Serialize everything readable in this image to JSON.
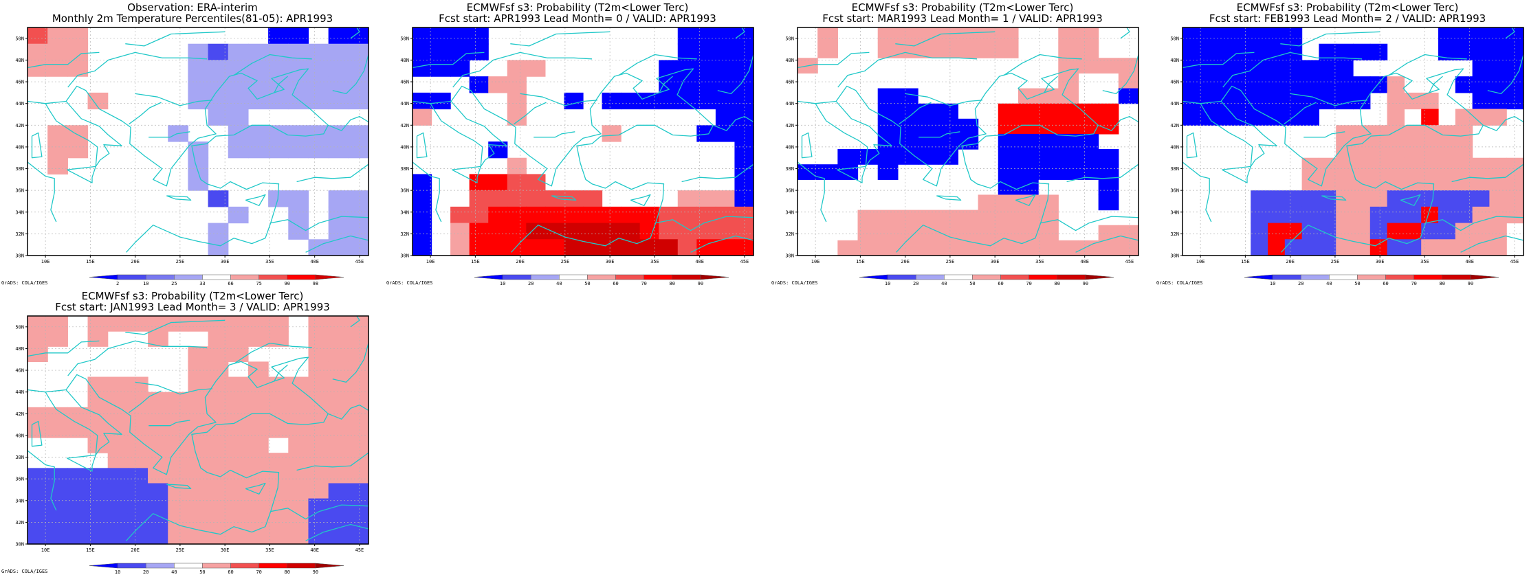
{
  "colors": {
    "blue_strong": "#0000ff",
    "blue_mid": "#4a4af0",
    "blue_light": "#a6a6f4",
    "red_light": "#f6a2a2",
    "red_mid": "#f25050",
    "red_strong": "#ff0000",
    "red_dark": "#d00000",
    "red_darker": "#a00000",
    "coast": "#20c8c8",
    "grid": "#b4b4b4"
  },
  "map": {
    "lon_range": [
      8,
      46
    ],
    "lat_range": [
      30,
      51
    ],
    "lon_ticks": [
      "10E",
      "15E",
      "20E",
      "25E",
      "30E",
      "35E",
      "40E",
      "45E"
    ],
    "lat_ticks": [
      "30N",
      "32N",
      "34N",
      "36N",
      "38N",
      "40N",
      "42N",
      "44N",
      "46N",
      "48N",
      "50N"
    ]
  },
  "credit_text": "GrADS: COLA/IGES",
  "panels": [
    {
      "title_line1": "Observation: ERA-interim",
      "title_line2": "Monthly 2m Temperature Percentiles(81-05): APR1993",
      "colorbar": {
        "labels": [
          "2",
          "10",
          "25",
          "33",
          "66",
          "75",
          "90",
          "98"
        ],
        "colors": [
          "#0000ff",
          "#4a4af0",
          "#7878f0",
          "#a6a6f4",
          "#ffffff",
          "#f6a2a2",
          "#f25050",
          "#ff0000",
          "#d00000"
        ]
      },
      "grid": [
        "rhh.........bb.bb",
        "hhh.....lmlllllll",
        "hhh.....lllllllll",
        "........lllllllll",
        "...h....lllllllll",
        ".........ll......",
        ".hh....l..lllllll",
        ".hh.....l.lllllll",
        ".h......l........",
        "........l........",
        ".........m..ll.ll",
        "..........l..l.ll",
        ".........l...l.ll",
        ".........l....lll"
      ]
    },
    {
      "title_line1": "ECMWFsf s3: Probability (T2m<Lower Terc)",
      "title_line2": "Fcst start: APR1993  Lead Month= 0 / VALID: APR1993",
      "colorbar": {
        "labels": [
          "10",
          "20",
          "40",
          "50",
          "60",
          "70",
          "80",
          "90"
        ],
        "colors": [
          "#0000ff",
          "#4a4af0",
          "#a6a6f4",
          "#ffffff",
          "#f6a2a2",
          "#f25050",
          "#ff0000",
          "#d00000",
          "#a00000"
        ]
      },
      "grid": [
        "bbbb..........bbbb",
        "bbbb..........bbbb",
        "bbb..hh......bbbbb",
        "...bhh.......bbbbb",
        "bb...h..b.bbbbbbbb",
        "h....h..........bb",
        "..........h....bbb",
        "....b............b",
        ".....h...........b",
        "b..ssrr..........b",
        "b..rrrrrrr....hhhb",
        "b.rrsssssssssrrrrr",
        "b.hsssddddddsrrrrr",
        "b.hsssssddddddrsss"
      ]
    },
    {
      "title_line1": "ECMWFsf s3: Probability (T2m<Lower Terc)",
      "title_line2": "Fcst start: MAR1993  Lead Month= 1 / VALID: APR1993",
      "colorbar": {
        "labels": [
          "10",
          "20",
          "40",
          "50",
          "60",
          "70",
          "80",
          "90"
        ],
        "colors": [
          "#0000ff",
          "#4a4af0",
          "#a6a6f4",
          "#ffffff",
          "#f6a2a2",
          "#f25050",
          "#ff0000",
          "#d00000",
          "#a00000"
        ]
      },
      "grid": [
        ".h..hhhhhhh..hh..",
        ".h..hhhhhhh..hh..",
        "h............hhhh",
        ".............h..h",
        "....bb.....hhh..b",
        "....bbbb..ssssss.",
        "....bbbbb.ssssss.",
        "....bbbbb.bbbbb..",
        "..bbbbbb..bbbbbb.",
        "bbb.b.....bbbbbb.",
        "..........bb...b.",
        ".........hhhh..b.",
        "...hhhhhhhhhh....",
        "...hhhhhhhhhh..hh",
        "..hhhhhhhhhhhhhhh"
      ]
    },
    {
      "title_line1": "ECMWFsf s3: Probability (T2m<Lower Terc)",
      "title_line2": "Fcst start: FEB1993  Lead Month= 2 / VALID: APR1993",
      "colorbar": {
        "labels": [
          "10",
          "20",
          "40",
          "50",
          "60",
          "70",
          "80",
          "90"
        ],
        "colors": [
          "#0000ff",
          "#4a4af0",
          "#a6a6f4",
          "#ffffff",
          "#f6a2a2",
          "#f25050",
          "#ff0000",
          "#d00000",
          "#a00000"
        ]
      },
      "grid": [
        "bbbbbbb........bbbbb",
        "bbbbbbb.bbbb...bbbbb",
        "bbbbbbbbbb.......bbb",
        "bbbbbbbbbbbbh...bbbb",
        "bbbbbbbbbbb.hhh..bbb",
        "bbbbbbbb....h.s.hhh.",
        ".........hhhhhhhh...",
        ".........hhhhhhhh...",
        ".......hhhhhhhhhhhhh",
        ".......hhhhhhhhhhhhh",
        "....mmmmmhhhmmmmmmhh",
        "....mmmmmhhmmmsmmhhh",
        "....mssmmhhmssmmhhh.",
        "....msmmmhhsmmhhhhh."
      ]
    },
    {
      "title_line1": "ECMWFsf s3: Probability (T2m<Lower Terc)",
      "title_line2": "Fcst start: JAN1993  Lead Month= 3 / VALID: APR1993",
      "colorbar": {
        "labels": [
          "10",
          "20",
          "40",
          "50",
          "60",
          "70",
          "80",
          "90"
        ],
        "colors": [
          "#0000ff",
          "#4a4af0",
          "#a6a6f4",
          "#ffffff",
          "#f6a2a2",
          "#f25050",
          "#ff0000",
          "#d00000",
          "#a00000"
        ]
      },
      "grid": [
        "hh.hhhhhhhhhh.hhh",
        "hh.h..h..hhhh.hhh",
        "h.......hhh...hhh",
        "........hh.h..hhh",
        "...hhh..hhhhhhhhh",
        "...hhhhhhhhhhhhhh",
        "hhhhhhhhhhhhhhhhh",
        "hhhhhhhhhhhhhhhhh",
        "...hhhhhhhhh.hhhh",
        "....hhhhhhhhhhhhh",
        "mmmmmmhhhhhhhhhhh",
        "mmmmmmmhhhhhhhhmm",
        "mmmmmmmhhhhhhhmmm",
        "mmmmmmmhhhhhhhmmm",
        "mmmmmmmhhhhhhhmmm"
      ]
    }
  ]
}
